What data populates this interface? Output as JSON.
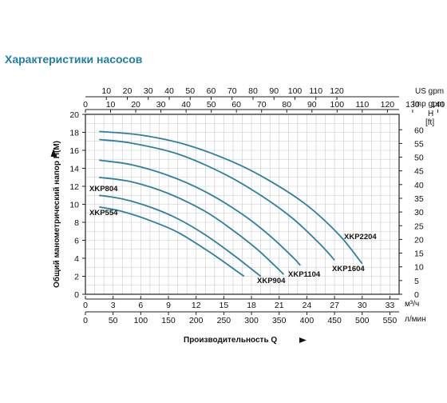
{
  "title": "Характеристики насосов",
  "chart_data": {
    "type": "line",
    "xlabel": "Производительность Q",
    "ylabel": "Общий манометрический напор  H(M)",
    "x_unit": "м³/ч",
    "x_alt_unit": "л/мин",
    "top_unit_1": "US gpm",
    "top_unit_2": "Imp gpm",
    "right_unit_h": "H",
    "right_unit_ft": "[ft]",
    "xlim": [
      0,
      34
    ],
    "ylim": [
      0,
      20
    ],
    "grid": true,
    "x_ticks": [
      0,
      3,
      6,
      9,
      12,
      15,
      18,
      21,
      24,
      27,
      30,
      33
    ],
    "y_ticks": [
      0,
      2,
      4,
      6,
      8,
      10,
      12,
      14,
      16,
      18,
      20
    ],
    "lmin_ticks": [
      0,
      50,
      100,
      150,
      200,
      250,
      300,
      350,
      400,
      450,
      500,
      550
    ],
    "usgpm_ticks": [
      10,
      20,
      30,
      40,
      50,
      60,
      70,
      80,
      90,
      100,
      110,
      120
    ],
    "impgpm_ticks": [
      0,
      10,
      20,
      30,
      40,
      50,
      60,
      70,
      80,
      90,
      100,
      110,
      120,
      130,
      140,
      150
    ],
    "ft_ticks": [
      0,
      5,
      10,
      15,
      20,
      25,
      30,
      35,
      40,
      45,
      50,
      55,
      60
    ],
    "series": [
      {
        "name": "XKP554",
        "x": [
          1.5,
          4,
          7,
          10,
          13,
          15,
          16.5,
          17.2
        ],
        "y": [
          9.7,
          9.2,
          8.2,
          6.9,
          5.0,
          3.6,
          2.5,
          2.0
        ]
      },
      {
        "name": "XKP804",
        "x": [
          1.5,
          4,
          7,
          10,
          13,
          16,
          18,
          19
        ],
        "y": [
          11.0,
          10.6,
          9.7,
          8.4,
          6.6,
          4.4,
          2.8,
          2.0
        ]
      },
      {
        "name": "XKP904",
        "x": [
          1.5,
          5,
          9,
          13,
          16,
          18.5,
          20.5,
          21.5
        ],
        "y": [
          13.0,
          12.5,
          11.2,
          9.2,
          7.1,
          5.1,
          3.2,
          2.2
        ]
      },
      {
        "name": "XKP1104",
        "x": [
          1.5,
          5,
          9,
          13,
          17,
          20,
          22.5,
          23.3
        ],
        "y": [
          14.9,
          14.4,
          13.2,
          11.4,
          8.9,
          6.5,
          4.1,
          3.2
        ]
      },
      {
        "name": "XKP1604",
        "x": [
          1.5,
          5,
          10,
          15,
          19,
          22.5,
          25.5,
          27
        ],
        "y": [
          17.2,
          16.8,
          15.6,
          13.4,
          11.0,
          8.4,
          5.5,
          3.8
        ]
      },
      {
        "name": "XKP2204",
        "x": [
          1.5,
          6,
          11,
          16,
          20,
          24,
          27.5,
          30
        ],
        "y": [
          18.1,
          17.7,
          16.6,
          14.7,
          12.6,
          9.9,
          6.6,
          3.4
        ]
      }
    ]
  }
}
